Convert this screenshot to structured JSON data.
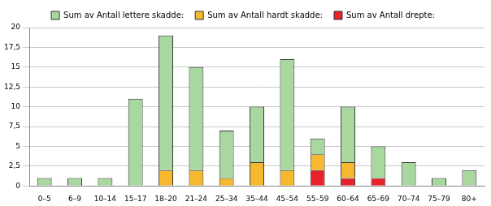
{
  "chart_data": {
    "type": "bar",
    "stacked": true,
    "grid": true,
    "legend": "top",
    "categories": [
      "0–5",
      "6–9",
      "10–14",
      "15–17",
      "18–20",
      "21–24",
      "25–34",
      "35–44",
      "45–54",
      "55–59",
      "60–64",
      "65–69",
      "70–74",
      "75–79",
      "80+"
    ],
    "series": [
      {
        "name": "Sum av Antall lettere skadde:",
        "color": "#a8d8a0",
        "values": [
          1,
          1,
          1,
          11,
          17,
          13,
          6,
          7,
          14,
          2,
          7,
          4,
          3,
          1,
          2
        ]
      },
      {
        "name": "Sum av Antall hardt skadde:",
        "color": "#f5b82e",
        "values": [
          0,
          0,
          0,
          0,
          2,
          2,
          1,
          3,
          2,
          2,
          2,
          0,
          0,
          0,
          0
        ]
      },
      {
        "name": "Sum av Antall drepte:",
        "color": "#e8212b",
        "values": [
          0,
          0,
          0,
          0,
          0,
          0,
          0,
          0,
          0,
          2,
          1,
          1,
          0,
          0,
          0
        ]
      }
    ],
    "ylim": [
      0,
      20
    ],
    "yticks": [
      0,
      {
        "value": 2.5,
        "label": "2,5"
      },
      5,
      {
        "value": 7.5,
        "label": "7,5"
      },
      10,
      {
        "value": 12.5,
        "label": "12,5"
      },
      15,
      {
        "value": 17.5,
        "label": "17,5"
      },
      20
    ]
  }
}
